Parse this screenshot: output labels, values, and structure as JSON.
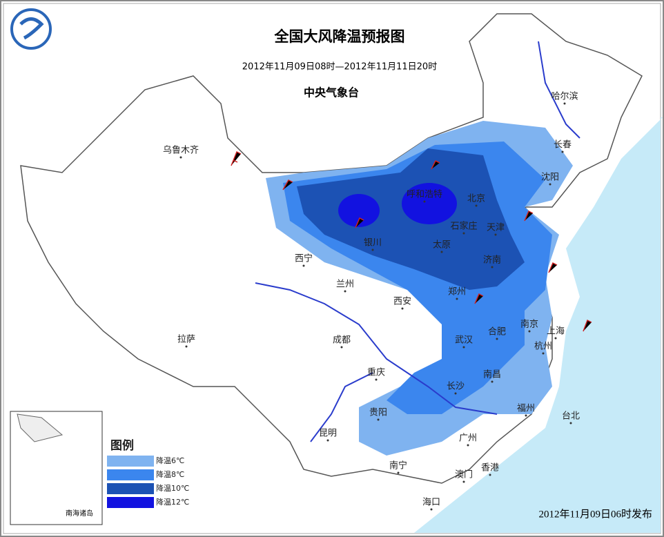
{
  "header": {
    "title": "全国大风降温预报图",
    "period": "2012年11月09日08时—2012年11月11日20时",
    "agency": "中央气象台"
  },
  "cities": [
    "乌鲁木齐",
    "哈尔滨",
    "长春",
    "沈阳",
    "呼和浩特",
    "北京",
    "天津",
    "石家庄",
    "银川",
    "太原",
    "济南",
    "西宁",
    "兰州",
    "西安",
    "郑州",
    "拉萨",
    "成都",
    "武汉",
    "合肥",
    "南京",
    "上海",
    "杭州",
    "重庆",
    "长沙",
    "南昌",
    "贵阳",
    "福州",
    "台北",
    "昆明",
    "广州",
    "南宁",
    "澳门",
    "香港",
    "海口"
  ],
  "legend": {
    "title": "图例",
    "items": [
      "降温6℃",
      "降温8℃",
      "降温10℃",
      "降温12℃"
    ]
  },
  "inset": {
    "label": "南海诸岛"
  },
  "footer": {
    "issued": "2012年11月09日06时发布"
  }
}
